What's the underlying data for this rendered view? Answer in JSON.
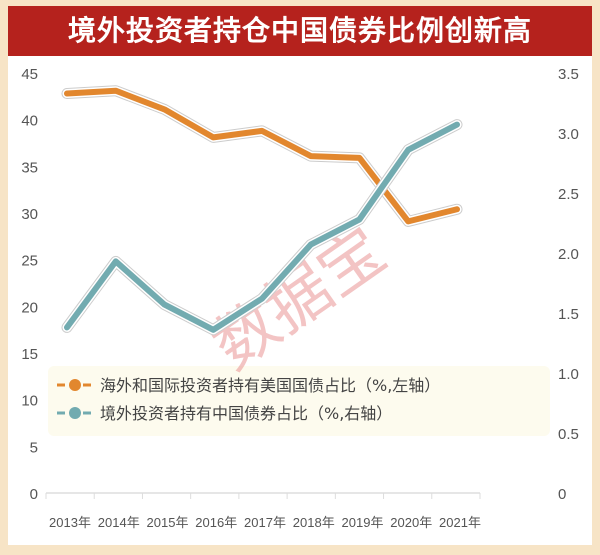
{
  "chart_data": {
    "type": "line",
    "title": "境外投资者持仓中国债券比例创新高",
    "categories": [
      "2013年",
      "2014年",
      "2015年",
      "2016年",
      "2017年",
      "2018年",
      "2019年",
      "2020年",
      "2021年"
    ],
    "y_left": {
      "range": [
        0,
        45
      ],
      "ticks": [
        "0",
        "5",
        "10",
        "15",
        "20",
        "25",
        "30",
        "35",
        "40",
        "45"
      ]
    },
    "y_right": {
      "range": [
        0,
        3.5
      ],
      "ticks": [
        "0",
        "0.5",
        "1.0",
        "1.5",
        "2.0",
        "2.5",
        "3.0",
        "3.5"
      ]
    },
    "grid": false,
    "legend_placement": "bottom-left",
    "watermark": "数据宝",
    "series": [
      {
        "name": "海外和国际投资者持有美国国债占比（%,左轴）",
        "axis": "left",
        "color": "#e2872e",
        "values": [
          42.8,
          43.1,
          41.1,
          38.1,
          38.8,
          36.1,
          35.9,
          29.1,
          30.4
        ]
      },
      {
        "name": "境外投资者持有中国债券占比（%,右轴）",
        "axis": "right",
        "color": "#72abb0",
        "values": [
          1.38,
          1.93,
          1.57,
          1.36,
          1.62,
          2.07,
          2.28,
          2.86,
          3.07
        ]
      }
    ]
  }
}
